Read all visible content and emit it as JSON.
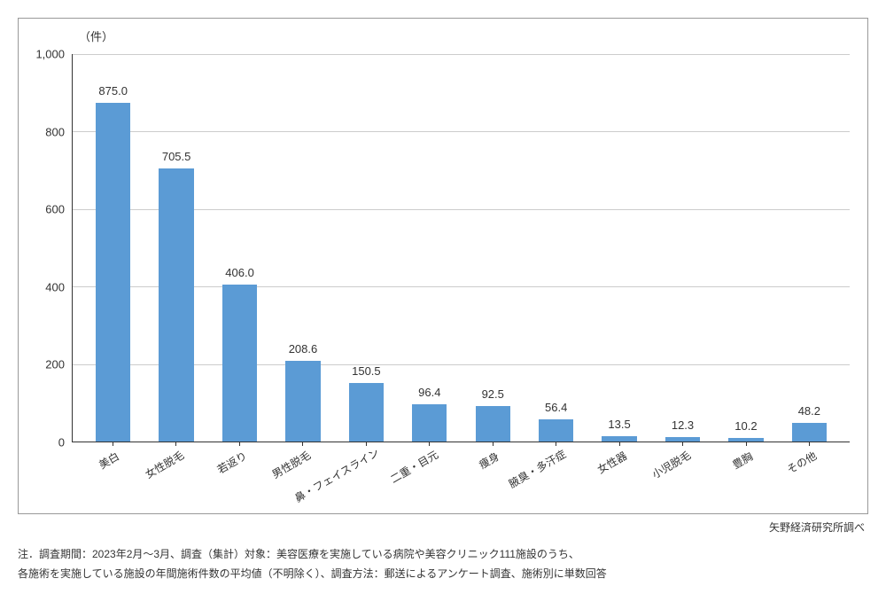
{
  "chart": {
    "type": "bar",
    "y_unit": "（件）",
    "y_max": 1000,
    "y_ticks": [
      0,
      200,
      400,
      600,
      800,
      1000
    ],
    "y_tick_labels": [
      "0",
      "200",
      "400",
      "600",
      "800",
      "1,000"
    ],
    "categories": [
      "美白",
      "女性脱毛",
      "若返り",
      "男性脱毛",
      "鼻・フェイスライン",
      "二重・目元",
      "痩身",
      "腋臭・多汗症",
      "女性器",
      "小児脱毛",
      "豊胸",
      "その他"
    ],
    "values": [
      875.0,
      705.5,
      406.0,
      208.6,
      150.5,
      96.4,
      92.5,
      56.4,
      13.5,
      12.3,
      10.2,
      48.2
    ],
    "value_labels": [
      "875.0",
      "705.5",
      "406.0",
      "208.6",
      "150.5",
      "96.4",
      "92.5",
      "56.4",
      "13.5",
      "12.3",
      "10.2",
      "48.2"
    ],
    "bar_color": "#5b9bd5",
    "grid_color": "#cccccc",
    "axis_color": "#333333",
    "label_fontsize": 13,
    "background_color": "#ffffff"
  },
  "source": "矢野経済研究所調べ",
  "note_line1": "注．調査期間：2023年2月～3月、調査（集計）対象：美容医療を実施している病院や美容クリニック111施設のうち、",
  "note_line2": "各施術を実施している施設の年間施術件数の平均値（不明除く）、調査方法：郵送によるアンケート調査、施術別に単数回答"
}
